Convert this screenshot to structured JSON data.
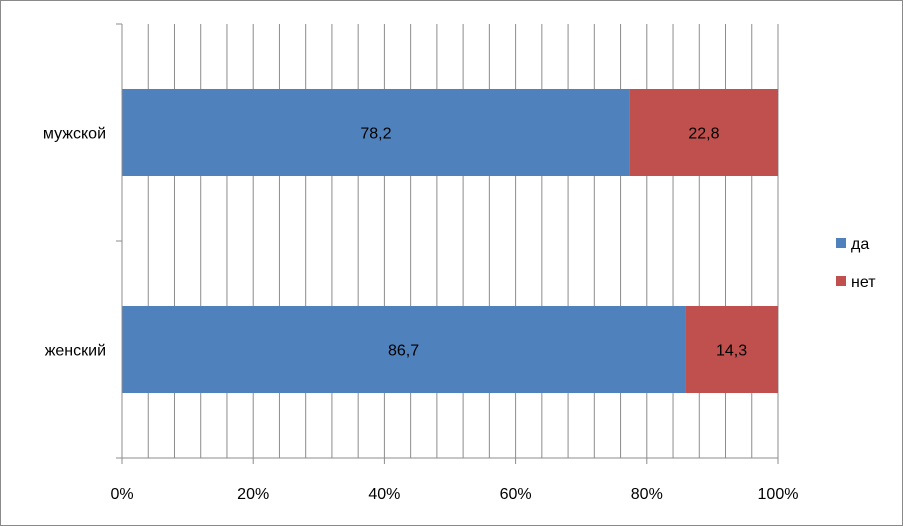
{
  "chart_data": {
    "type": "bar",
    "orientation": "horizontal",
    "stacked": "percent",
    "categories": [
      "мужской",
      "женский"
    ],
    "series": [
      {
        "name": "да",
        "color": "#4F81BD",
        "values": [
          78.2,
          86.7
        ],
        "labels": [
          "78,2",
          "86,7"
        ]
      },
      {
        "name": "нет",
        "color": "#C0504D",
        "values": [
          22.8,
          14.3
        ],
        "labels": [
          "22,8",
          "14,3"
        ]
      }
    ],
    "xticks": [
      "0%",
      "20%",
      "40%",
      "60%",
      "80%",
      "100%"
    ],
    "xlim": [
      0,
      100
    ],
    "grid": true,
    "legend": "right"
  }
}
